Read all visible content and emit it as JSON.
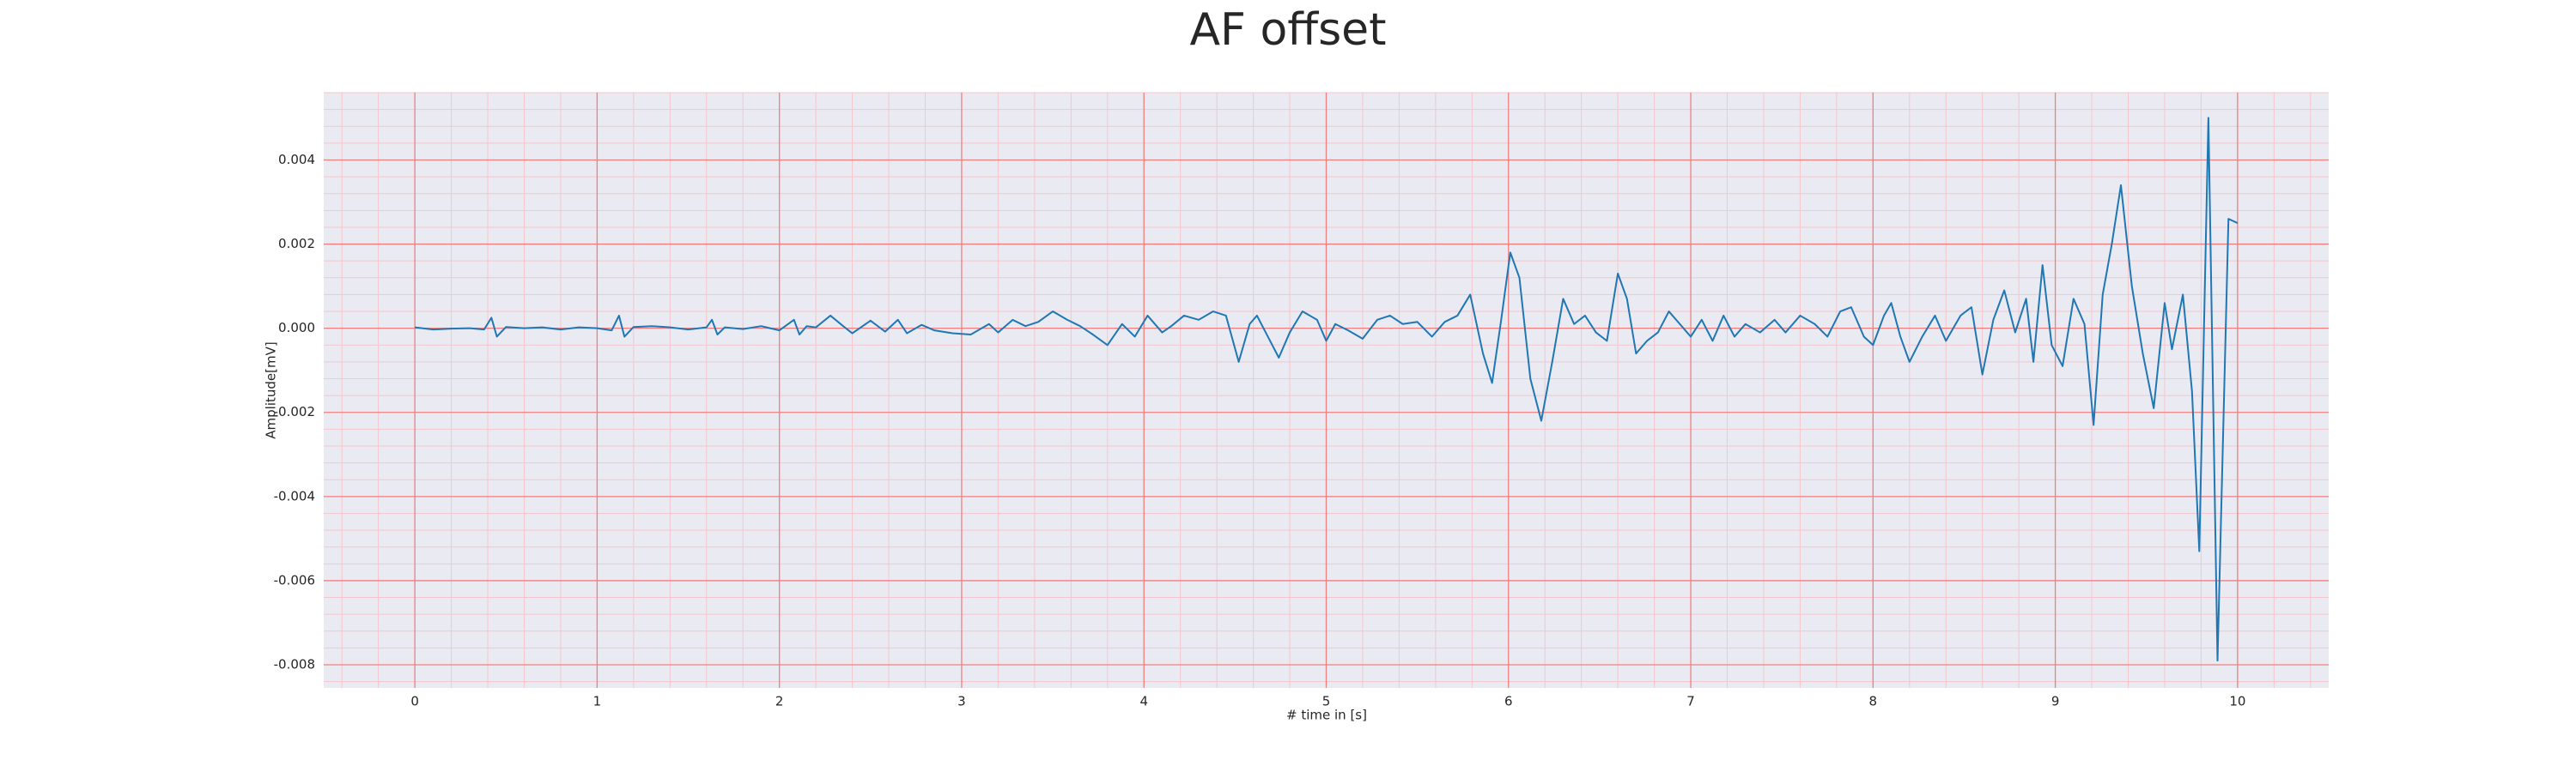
{
  "chart_data": {
    "type": "line",
    "title": "AF offset",
    "x_label": "# time in [s]",
    "y_label": "Amplitude[mV]",
    "xlim": [
      -0.5,
      10.5
    ],
    "ylim": [
      -0.00855,
      0.0056
    ],
    "xticks": [
      0,
      1,
      2,
      3,
      4,
      5,
      6,
      7,
      8,
      9,
      10
    ],
    "yticks": [
      0.004,
      0.002,
      {
        "value": 0,
        "label": "0.000"
      },
      -0.002,
      -0.004,
      -0.006,
      -0.008
    ],
    "grid": true,
    "minor_grid": 5,
    "background": "#eaeaf2",
    "grid_color": "#f08080",
    "minor_grid_color": "#f5c6cc",
    "series": [
      {
        "color": "#1f77b4",
        "x": [
          0,
          0.1,
          0.2,
          0.3,
          0.38,
          0.42,
          0.45,
          0.5,
          0.6,
          0.7,
          0.8,
          0.9,
          1.0,
          1.08,
          1.12,
          1.15,
          1.2,
          1.3,
          1.4,
          1.5,
          1.6,
          1.63,
          1.66,
          1.7,
          1.8,
          1.9,
          2.0,
          2.08,
          2.11,
          2.15,
          2.2,
          2.28,
          2.35,
          2.4,
          2.5,
          2.58,
          2.65,
          2.7,
          2.78,
          2.85,
          2.95,
          3.05,
          3.15,
          3.2,
          3.28,
          3.35,
          3.42,
          3.5,
          3.58,
          3.65,
          3.72,
          3.8,
          3.88,
          3.95,
          4.02,
          4.1,
          4.15,
          4.22,
          4.3,
          4.38,
          4.45,
          4.52,
          4.58,
          4.62,
          4.68,
          4.74,
          4.8,
          4.87,
          4.95,
          5.0,
          5.05,
          5.12,
          5.2,
          5.28,
          5.35,
          5.42,
          5.5,
          5.58,
          5.65,
          5.72,
          5.79,
          5.86,
          5.91,
          5.96,
          6.01,
          6.06,
          6.12,
          6.18,
          6.24,
          6.3,
          6.36,
          6.42,
          6.48,
          6.54,
          6.6,
          6.65,
          6.7,
          6.76,
          6.82,
          6.88,
          6.94,
          7.0,
          7.06,
          7.12,
          7.18,
          7.24,
          7.3,
          7.38,
          7.46,
          7.52,
          7.6,
          7.68,
          7.75,
          7.82,
          7.88,
          7.95,
          8.0,
          8.06,
          8.1,
          8.15,
          8.2,
          8.27,
          8.34,
          8.4,
          8.48,
          8.54,
          8.6,
          8.66,
          8.72,
          8.78,
          8.84,
          8.88,
          8.93,
          8.98,
          9.04,
          9.1,
          9.16,
          9.21,
          9.26,
          9.31,
          9.36,
          9.42,
          9.48,
          9.54,
          9.6,
          9.64,
          9.7,
          9.75,
          9.79,
          9.84,
          9.89,
          9.95,
          10.0
        ],
        "values": [
          2e-05,
          -3e-05,
          -1e-05,
          0,
          -3e-05,
          0.00025,
          -0.0002,
          3e-05,
          0,
          2e-05,
          -3e-05,
          2e-05,
          0,
          -5e-05,
          0.0003,
          -0.0002,
          3e-05,
          5e-05,
          2e-05,
          -3e-05,
          2e-05,
          0.0002,
          -0.00015,
          2e-05,
          -2e-05,
          5e-05,
          -5e-05,
          0.0002,
          -0.00015,
          5e-05,
          2e-05,
          0.0003,
          5e-05,
          -0.00012,
          0.00018,
          -8e-05,
          0.0002,
          -0.00012,
          8e-05,
          -5e-05,
          -0.00012,
          -0.00015,
          0.0001,
          -0.0001,
          0.0002,
          5e-05,
          0.00015,
          0.0004,
          0.0002,
          5e-05,
          -0.00015,
          -0.0004,
          0.0001,
          -0.0002,
          0.0003,
          -0.0001,
          5e-05,
          0.0003,
          0.0002,
          0.0004,
          0.0003,
          -0.0008,
          0.0001,
          0.0003,
          -0.0002,
          -0.0007,
          -0.0001,
          0.0004,
          0.0002,
          -0.0003,
          0.0001,
          -5e-05,
          -0.00025,
          0.0002,
          0.0003,
          0.0001,
          0.00015,
          -0.0002,
          0.00015,
          0.0003,
          0.0008,
          -0.0006,
          -0.0013,
          0.0002,
          0.0018,
          0.0012,
          -0.0012,
          -0.0022,
          -0.0008,
          0.0007,
          0.0001,
          0.0003,
          -0.0001,
          -0.0003,
          0.0013,
          0.0007,
          -0.0006,
          -0.0003,
          -0.0001,
          0.0004,
          0.0001,
          -0.0002,
          0.0002,
          -0.0003,
          0.0003,
          -0.0002,
          0.0001,
          -0.0001,
          0.0002,
          -0.0001,
          0.0003,
          0.0001,
          -0.0002,
          0.0004,
          0.0005,
          -0.0002,
          -0.0004,
          0.0003,
          0.0006,
          -0.0002,
          -0.0008,
          -0.0002,
          0.0003,
          -0.0003,
          0.0003,
          0.0005,
          -0.0011,
          0.0002,
          0.0009,
          -0.0001,
          0.0007,
          -0.0008,
          0.0015,
          -0.0004,
          -0.0009,
          0.0007,
          0.0001,
          -0.0023,
          0.0008,
          0.002,
          0.0034,
          0.001,
          -0.0006,
          -0.0019,
          0.0006,
          -0.0005,
          0.0008,
          -0.0015,
          -0.0053,
          0.005,
          -0.0079,
          0.0026,
          0.0025
        ]
      }
    ]
  }
}
